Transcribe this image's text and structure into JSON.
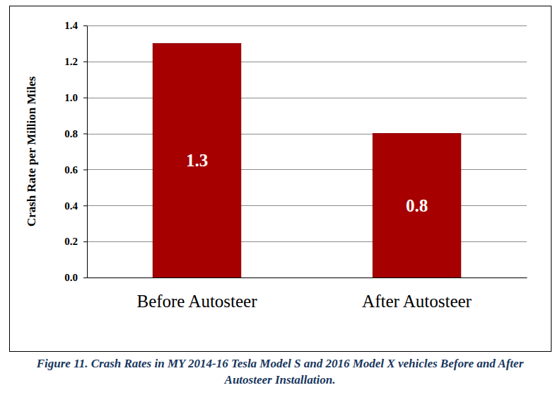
{
  "chart_data": {
    "type": "bar",
    "title": "Figure 11. Crash Rates in MY 2014-16 Tesla Model S and 2016 Model X vehicles Before and After Autosteer Installation.",
    "categories": [
      "Before Autosteer",
      "After Autosteer"
    ],
    "values": [
      1.3,
      0.8
    ],
    "color": "#a60000",
    "y_label": "Crash Rate per Million Miles",
    "ylim": [
      0,
      1.4
    ],
    "yticks": [
      {
        "value": 0,
        "label": "0.0"
      },
      0.2,
      0.4,
      0.6,
      0.8,
      {
        "value": 1,
        "label": "1.0"
      },
      1.2,
      1.4
    ],
    "grid": true,
    "data_labels": true
  }
}
